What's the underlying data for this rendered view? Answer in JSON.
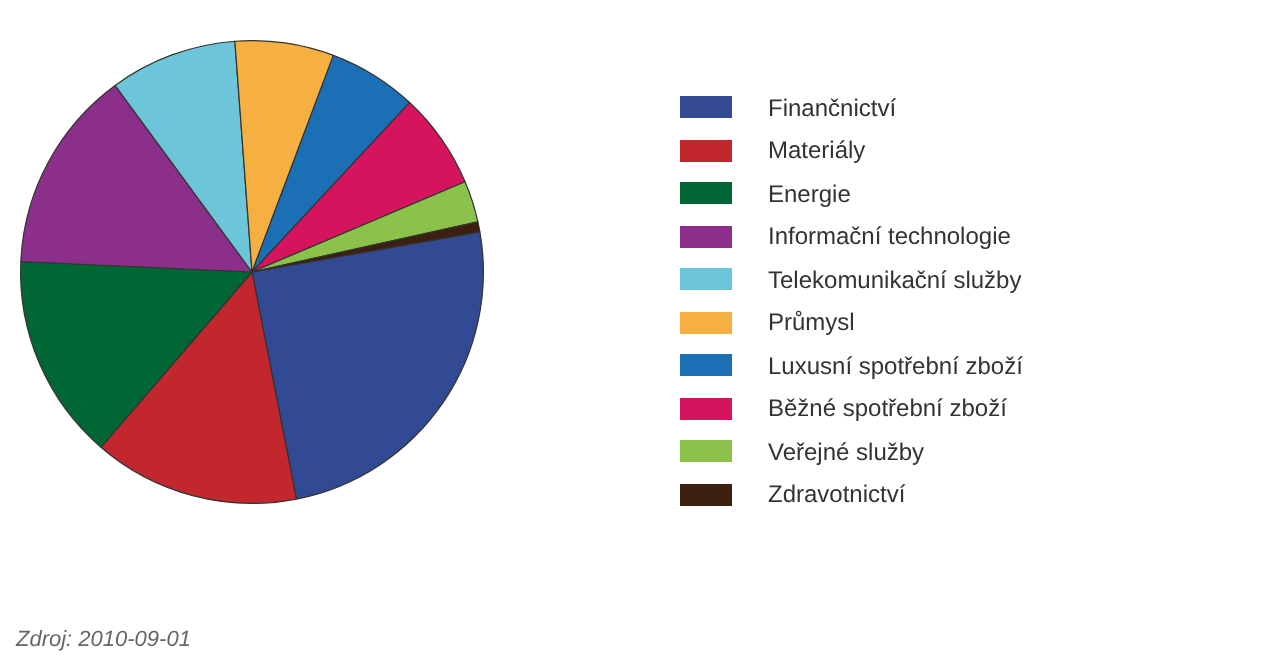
{
  "chart_data": {
    "type": "pie",
    "categories": [
      "Finančnictví",
      "Materiály",
      "Energie",
      "Informační technologie",
      "Telekomunikační služby",
      "Průmysl",
      "Luxusní spotřební zboží",
      "Běžné spotřební zboží",
      "Veřejné služby",
      "Zdravotnictví"
    ],
    "values": [
      24.7,
      14.4,
      14.4,
      14.2,
      8.9,
      6.9,
      6.2,
      6.7,
      2.9,
      0.7
    ],
    "colors": [
      "#324a94",
      "#c1272d",
      "#006633",
      "#8b2f8a",
      "#6cc5d9",
      "#f5b041",
      "#1a6fb5",
      "#d6145e",
      "#8bc34a",
      "#3d1f0f"
    ],
    "legend": "right",
    "annotations": [
      "Zdroj: 2010-09-01"
    ]
  }
}
